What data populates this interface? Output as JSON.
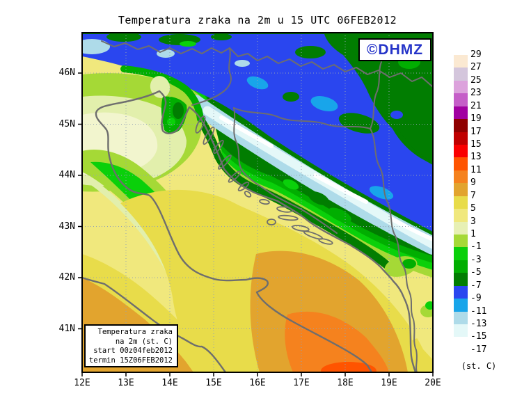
{
  "title": "Temperatura zraka na 2m u 15 UTC 06FEB2012",
  "logo": {
    "text": "©DHMZ",
    "color": "#2433C8"
  },
  "info_box": {
    "lines": [
      "Temperatura zraka",
      "na 2m (st. C)",
      "start 00z04feb2012",
      "termin 15Z06FEB2012"
    ]
  },
  "axes": {
    "lat_labels": [
      "46N",
      "45N",
      "44N",
      "43N",
      "42N",
      "41N"
    ],
    "lon_labels": [
      "12E",
      "13E",
      "14E",
      "15E",
      "16E",
      "17E",
      "18E",
      "19E",
      "20E"
    ]
  },
  "legend": {
    "unit_label": "(st. C)",
    "boundary_labels": [
      "29",
      "27",
      "25",
      "23",
      "21",
      "19",
      "17",
      "15",
      "13",
      "11",
      "9",
      "7",
      "5",
      "3",
      "1",
      "-1",
      "-3",
      "-5",
      "-7",
      "-9",
      "-11",
      "-13",
      "-15",
      "-17"
    ],
    "cell_colors": [
      "#FBE9D2",
      "#D4C6DC",
      "#DCA2DC",
      "#C55EC8",
      "#A100A1",
      "#8F0000",
      "#C00000",
      "#FA0000",
      "#FF5400",
      "#F5821E",
      "#E2A42E",
      "#E8DC4A",
      "#F0E87D",
      "#E7F0B4",
      "#A5D936",
      "#0AD00A",
      "#01AE01",
      "#017D01",
      "#2A46EF",
      "#18A5EA",
      "#AEDBE9",
      "#E4F8F8",
      "#FFFFFF"
    ]
  },
  "map": {
    "line_color": "#6E6E6E",
    "grid_color": "#94A3B4",
    "frame_color": "#000000"
  }
}
